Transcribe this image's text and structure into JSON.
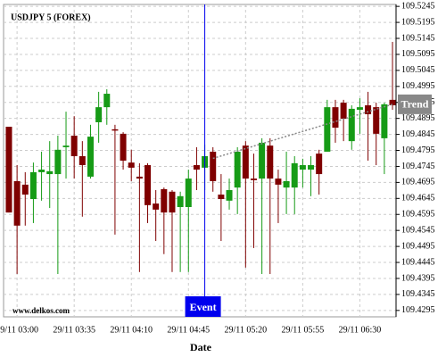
{
  "chart_data": {
    "type": "candlestick",
    "title": "USDJPY 5 (FOREX)",
    "watermark": "www.delkos.com",
    "x_label": "Date",
    "categories": [
      null,
      "29/11 03:00",
      null,
      null,
      null,
      null,
      null,
      null,
      "29/11 03:35",
      null,
      null,
      null,
      null,
      null,
      null,
      "29/11 04:10",
      null,
      null,
      null,
      null,
      null,
      null,
      "29/11 04:45",
      null,
      null,
      null,
      null,
      null,
      null,
      "29/11 05:20",
      null,
      null,
      null,
      null,
      null,
      null,
      "29/11 05:55",
      null,
      null,
      null,
      null,
      null,
      null,
      "29/11 06:30",
      null,
      null,
      null,
      null
    ],
    "open": [
      109.4869,
      109.4699,
      109.4688,
      109.4643,
      109.4727,
      109.4721,
      109.4721,
      109.4805,
      109.4841,
      109.4777,
      109.4713,
      109.4883,
      109.493,
      109.4861,
      109.4847,
      109.4757,
      109.4713,
      109.4749,
      109.4629,
      109.4674,
      109.4666,
      109.4618,
      109.4618,
      109.4749,
      109.4741,
      109.4791,
      109.4657,
      109.4638,
      109.4679,
      109.481,
      109.4707,
      109.4707,
      109.481,
      109.4707,
      109.4679,
      109.4679,
      109.4735,
      109.4735,
      109.4785,
      109.4791,
      109.493,
      109.4944,
      109.4824,
      109.4922,
      109.4936,
      109.493,
      109.4833,
      109.4953
    ],
    "high": [
      109.4869,
      109.4749,
      109.4727,
      109.4757,
      109.4791,
      109.4824,
      109.4841,
      109.4916,
      109.4902,
      109.4824,
      109.4875,
      109.4978,
      109.4986,
      109.4875,
      109.4852,
      109.4797,
      109.4755,
      109.4755,
      109.4671,
      109.4679,
      109.4671,
      109.4666,
      109.4735,
      109.4805,
      109.4813,
      109.4805,
      109.4721,
      109.4707,
      109.4805,
      109.4824,
      109.4785,
      109.4833,
      109.4833,
      109.4735,
      109.4791,
      109.4777,
      109.4769,
      109.4777,
      109.4797,
      109.4953,
      109.4953,
      109.4953,
      109.4936,
      109.4958,
      109.4978,
      109.4944,
      109.4944,
      109.5134
    ],
    "low": [
      109.4601,
      109.4409,
      109.456,
      109.4568,
      109.4638,
      109.4615,
      109.4409,
      109.4707,
      109.4707,
      109.4588,
      109.4707,
      109.4819,
      109.4875,
      109.4532,
      109.4735,
      109.4699,
      109.4415,
      109.4568,
      109.4512,
      109.4471,
      109.4415,
      109.4415,
      109.4415,
      109.4671,
      109.4671,
      109.4666,
      109.4512,
      109.461,
      109.4596,
      109.4429,
      109.449,
      109.4409,
      109.4409,
      109.4568,
      109.4596,
      109.4596,
      109.4679,
      109.4652,
      109.4657,
      109.4791,
      109.4819,
      109.4824,
      109.4797,
      109.4847,
      109.4763,
      109.4749,
      109.4721,
      109.4922
    ],
    "close": [
      109.4601,
      109.456,
      109.4657,
      109.4727,
      109.4735,
      109.473,
      109.4797,
      109.481,
      109.4777,
      109.4749,
      109.4838,
      109.493,
      109.4972,
      109.4858,
      109.4763,
      109.4741,
      109.4707,
      109.4624,
      109.461,
      109.4601,
      109.4601,
      109.4652,
      109.4707,
      109.4735,
      109.4777,
      109.4699,
      109.4643,
      109.4671,
      109.4791,
      109.4707,
      109.4702,
      109.4819,
      109.4707,
      109.4688,
      109.4699,
      109.4755,
      109.4749,
      109.4749,
      109.4721,
      109.493,
      109.4866,
      109.4894,
      109.4925,
      109.493,
      109.4908,
      109.4847,
      109.4939,
      109.4936
    ],
    "up_color": "#169b16",
    "down_color": "#7f0000",
    "ylim": [
      109.4275,
      109.5251
    ],
    "yticks": [
      109.5245,
      109.5195,
      109.5145,
      109.5095,
      109.5045,
      109.4995,
      109.4945,
      109.4895,
      109.4845,
      109.4795,
      109.4745,
      109.4695,
      109.4645,
      109.4595,
      109.4545,
      109.4495,
      109.4445,
      109.4395,
      109.4345,
      109.4295
    ],
    "grid": true,
    "event": {
      "label": "Event",
      "at": 24,
      "color": "#0000ee"
    },
    "trend": {
      "label": "Trend",
      "start": {
        "at": 25,
        "value": 109.477
      },
      "end": {
        "at": 47,
        "value": 109.4939
      },
      "color": "#888888"
    }
  }
}
